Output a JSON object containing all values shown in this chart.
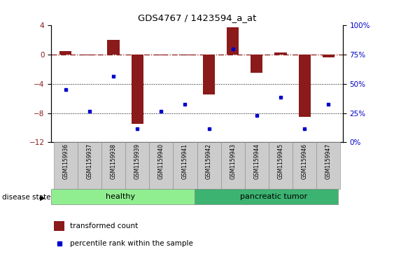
{
  "title": "GDS4767 / 1423594_a_at",
  "samples": [
    "GSM1159936",
    "GSM1159937",
    "GSM1159938",
    "GSM1159939",
    "GSM1159940",
    "GSM1159941",
    "GSM1159942",
    "GSM1159943",
    "GSM1159944",
    "GSM1159945",
    "GSM1159946",
    "GSM1159947"
  ],
  "transformed_count": [
    0.5,
    -0.1,
    2.0,
    -9.5,
    -0.1,
    -0.1,
    -5.5,
    3.7,
    -2.5,
    0.3,
    -8.5,
    -0.4
  ],
  "percentile_rank_scaled": [
    -4.8,
    -7.8,
    -3.0,
    -10.2,
    -7.8,
    -6.8,
    -10.2,
    0.8,
    -8.3,
    -5.8,
    -10.2,
    -6.8
  ],
  "ylim_left": [
    -12,
    4
  ],
  "ylim_right": [
    0,
    100
  ],
  "yticks_left": [
    -12,
    -8,
    -4,
    0,
    4
  ],
  "yticks_right": [
    0,
    25,
    50,
    75,
    100
  ],
  "bar_color": "#8B1A1A",
  "dot_color": "#0000CD",
  "hline_color": "#8B1A1A",
  "grid_color": "black",
  "healthy_color": "#90EE90",
  "tumor_color": "#3CB371",
  "group_label_healthy": "healthy",
  "group_label_tumor": "pancreatic tumor",
  "legend_label_bar": "transformed count",
  "legend_label_dot": "percentile rank within the sample",
  "disease_state_label": "disease state",
  "bg_color": "#ffffff",
  "tick_label_color_left": "#8B1A1A",
  "tick_label_color_right": "#0000CD",
  "label_bg": "#cccccc",
  "label_edge": "#888888"
}
